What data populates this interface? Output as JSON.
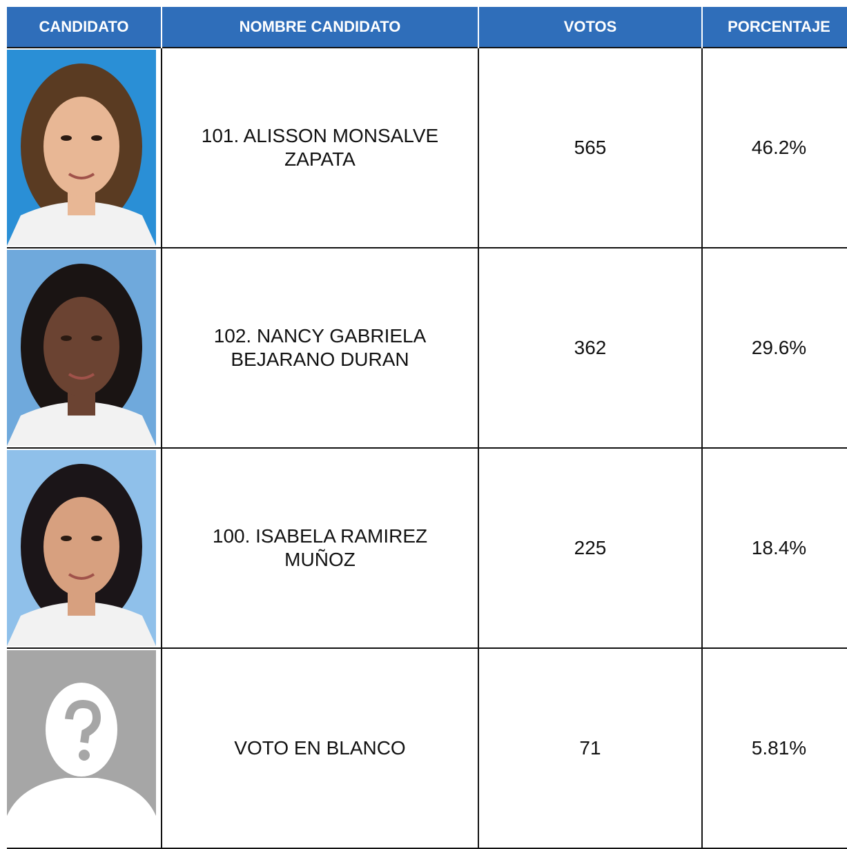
{
  "table": {
    "header": [
      "CANDIDATO",
      "NOMBRE CANDIDATO",
      "VOTOS",
      "PORCENTAJE"
    ],
    "rows": [
      {
        "name": "101. ALISSON MONSALVE ZAPATA",
        "votes": "565",
        "percent": "46.2%"
      },
      {
        "name": "102. NANCY GABRIELA BEJARANO DURAN",
        "votes": "362",
        "percent": "29.6%"
      },
      {
        "name": "100. ISABELA RAMIREZ MUÑOZ",
        "votes": "225",
        "percent": "18.4%"
      },
      {
        "name": "VOTO EN BLANCO",
        "votes": "71",
        "percent": "5.81%"
      }
    ]
  }
}
